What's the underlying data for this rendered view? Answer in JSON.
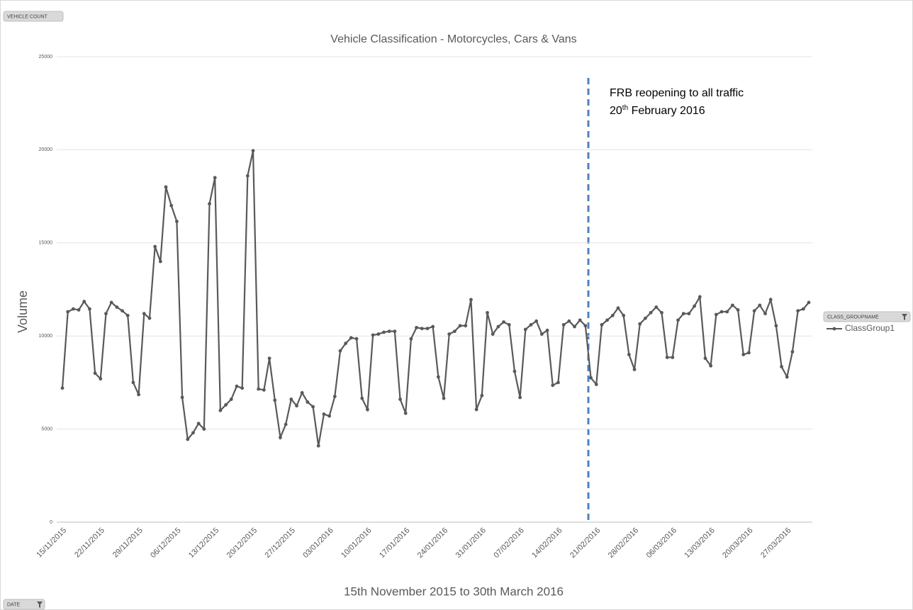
{
  "chart_data": {
    "type": "line",
    "title": "Vehicle Classification - Motorcycles, Cars & Vans",
    "y_label": "Volume",
    "x_label": "15th November 2015 to 30th March 2016",
    "legend_title": "CLASS_GROUPNAME",
    "grid": true,
    "legend": "right",
    "annotation": {
      "line1": "FRB reopening to all traffic",
      "line2": [
        "20",
        "th",
        " February 2016"
      ]
    },
    "categories": [
      "15/11/2015",
      null,
      null,
      null,
      null,
      null,
      null,
      "22/11/2015",
      null,
      null,
      null,
      null,
      null,
      null,
      "29/11/2015",
      null,
      null,
      null,
      null,
      null,
      null,
      "06/12/2015",
      null,
      null,
      null,
      null,
      null,
      null,
      "13/12/2015",
      null,
      null,
      null,
      null,
      null,
      null,
      "20/12/2015",
      null,
      null,
      null,
      null,
      null,
      null,
      "27/12/2015",
      null,
      null,
      null,
      null,
      null,
      null,
      "03/01/2016",
      null,
      null,
      null,
      null,
      null,
      null,
      "10/01/2016",
      null,
      null,
      null,
      null,
      null,
      null,
      "17/01/2016",
      null,
      null,
      null,
      null,
      null,
      null,
      "24/01/2016",
      null,
      null,
      null,
      null,
      null,
      null,
      "31/01/2016",
      null,
      null,
      null,
      null,
      null,
      null,
      "07/02/2016",
      null,
      null,
      null,
      null,
      null,
      null,
      "14/02/2016",
      null,
      null,
      null,
      null,
      null,
      null,
      "21/02/2016",
      null,
      null,
      null,
      null,
      null,
      null,
      "28/02/2016",
      null,
      null,
      null,
      null,
      null,
      null,
      "06/03/2016",
      null,
      null,
      null,
      null,
      null,
      null,
      "13/03/2016",
      null,
      null,
      null,
      null,
      null,
      null,
      "20/03/2016",
      null,
      null,
      null,
      null,
      null,
      null,
      "27/03/2016",
      null,
      null,
      null,
      null
    ],
    "series": [
      {
        "name": "ClassGroup1",
        "color": "#595959",
        "values": [
          7200,
          11300,
          11450,
          11400,
          11850,
          11450,
          8000,
          7700,
          11200,
          11800,
          11550,
          11350,
          11100,
          7500,
          6850,
          11200,
          10950,
          14800,
          14000,
          18000,
          17000,
          16150,
          6700,
          4450,
          4800,
          5300,
          5000,
          17100,
          18500,
          6000,
          6300,
          6600,
          7300,
          7200,
          18600,
          19950,
          7150,
          7100,
          8800,
          6550,
          4550,
          5250,
          6600,
          6250,
          6950,
          6450,
          6200,
          4100,
          5800,
          5700,
          6750,
          9200,
          9600,
          9900,
          9850,
          6650,
          6050,
          10050,
          10100,
          10200,
          10250,
          10250,
          6600,
          5850,
          9850,
          10450,
          10400,
          10400,
          10500,
          7800,
          6650,
          10100,
          10250,
          10550,
          10550,
          11950,
          6050,
          6800,
          11250,
          10100,
          10500,
          10750,
          10600,
          8100,
          6700,
          10350,
          10600,
          10800,
          10100,
          10300,
          7350,
          7500,
          10600,
          10800,
          10500,
          10850,
          10550,
          7750,
          7400,
          10600,
          10850,
          11100,
          11500,
          11100,
          9000,
          8200,
          10650,
          10950,
          11250,
          11550,
          11250,
          8850,
          8850,
          10850,
          11200,
          11200,
          11600,
          12100,
          8800,
          8400,
          11150,
          11300,
          11300,
          11650,
          11400,
          9000,
          9100,
          11350,
          11650,
          11200,
          11950,
          10550,
          8350,
          7800,
          9150,
          11350,
          11450,
          11800
        ]
      }
    ],
    "ylim": [
      0,
      25000
    ],
    "yticks": [
      0,
      5000,
      10000,
      15000,
      20000,
      25000
    ]
  },
  "pivot_buttons": {
    "values_field": "VEHICLE COUNT",
    "axis_field": "DATE"
  }
}
